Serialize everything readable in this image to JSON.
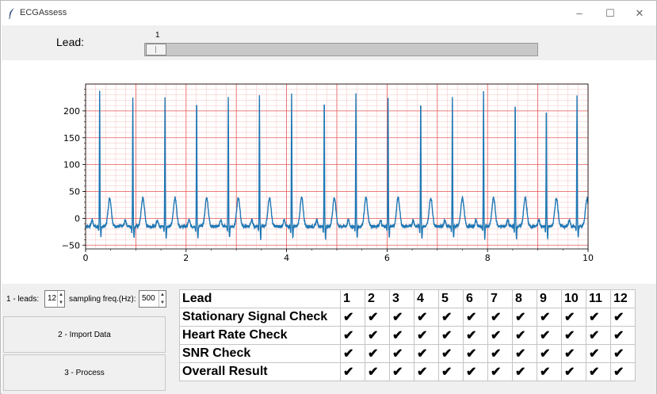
{
  "window": {
    "title": "ECGAssess",
    "controls": [
      "–",
      "☐",
      "✕"
    ]
  },
  "lead_bar": {
    "label": "Lead:",
    "slider_value": "1"
  },
  "chart_data": {
    "type": "line",
    "series_color": "#1f77b4",
    "grid": "ECG paper grid (major red, minor pink)",
    "xlim": [
      0,
      10
    ],
    "ylim": [
      -57,
      250
    ],
    "xticks": [
      "0",
      "2",
      "4",
      "6",
      "8",
      "10"
    ],
    "yticks": [
      "−50",
      "0",
      "50",
      "100",
      "150",
      "200"
    ],
    "beats": [
      {
        "x": 0.28,
        "peak": 236
      },
      {
        "x": 0.94,
        "peak": 227
      },
      {
        "x": 1.58,
        "peak": 227
      },
      {
        "x": 2.21,
        "peak": 227
      },
      {
        "x": 2.84,
        "peak": 228
      },
      {
        "x": 3.46,
        "peak": 232
      },
      {
        "x": 4.1,
        "peak": 235
      },
      {
        "x": 4.75,
        "peak": 230
      },
      {
        "x": 5.38,
        "peak": 235
      },
      {
        "x": 6.02,
        "peak": 227
      },
      {
        "x": 6.67,
        "peak": 228
      },
      {
        "x": 7.3,
        "peak": 228
      },
      {
        "x": 7.92,
        "peak": 236
      },
      {
        "x": 8.55,
        "peak": 224
      },
      {
        "x": 9.17,
        "peak": 212
      },
      {
        "x": 9.78,
        "peak": 227
      }
    ],
    "baseline": -15,
    "t_wave_peak": 38,
    "s_trough": -38
  },
  "controls": {
    "leads_label": "1 - leads:",
    "leads_value": "12",
    "freq_label": "sampling freq.(Hz):",
    "freq_value": "500",
    "import_button": "2 - Import Data",
    "process_button": "3 - Process"
  },
  "results": {
    "header": {
      "name": "Lead",
      "cols": [
        "1",
        "2",
        "3",
        "4",
        "5",
        "6",
        "7",
        "8",
        "9",
        "10",
        "11",
        "12"
      ]
    },
    "rows": [
      {
        "name": "Stationary Signal Check",
        "marks": [
          "✔",
          "✔",
          "✔",
          "✔",
          "✔",
          "✔",
          "✔",
          "✔",
          "✔",
          "✔",
          "✔",
          "✔"
        ]
      },
      {
        "name": "Heart Rate Check",
        "marks": [
          "✔",
          "✔",
          "✔",
          "✔",
          "✔",
          "✔",
          "✔",
          "✔",
          "✔",
          "✔",
          "✔",
          "✔"
        ]
      },
      {
        "name": "SNR Check",
        "marks": [
          "✔",
          "✔",
          "✔",
          "✔",
          "✔",
          "✔",
          "✔",
          "✔",
          "✔",
          "✔",
          "✔",
          "✔"
        ]
      },
      {
        "name": "Overall Result",
        "marks": [
          "✔",
          "✔",
          "✔",
          "✔",
          "✔",
          "✔",
          "✔",
          "✔",
          "✔",
          "✔",
          "✔",
          "✔"
        ]
      }
    ]
  }
}
